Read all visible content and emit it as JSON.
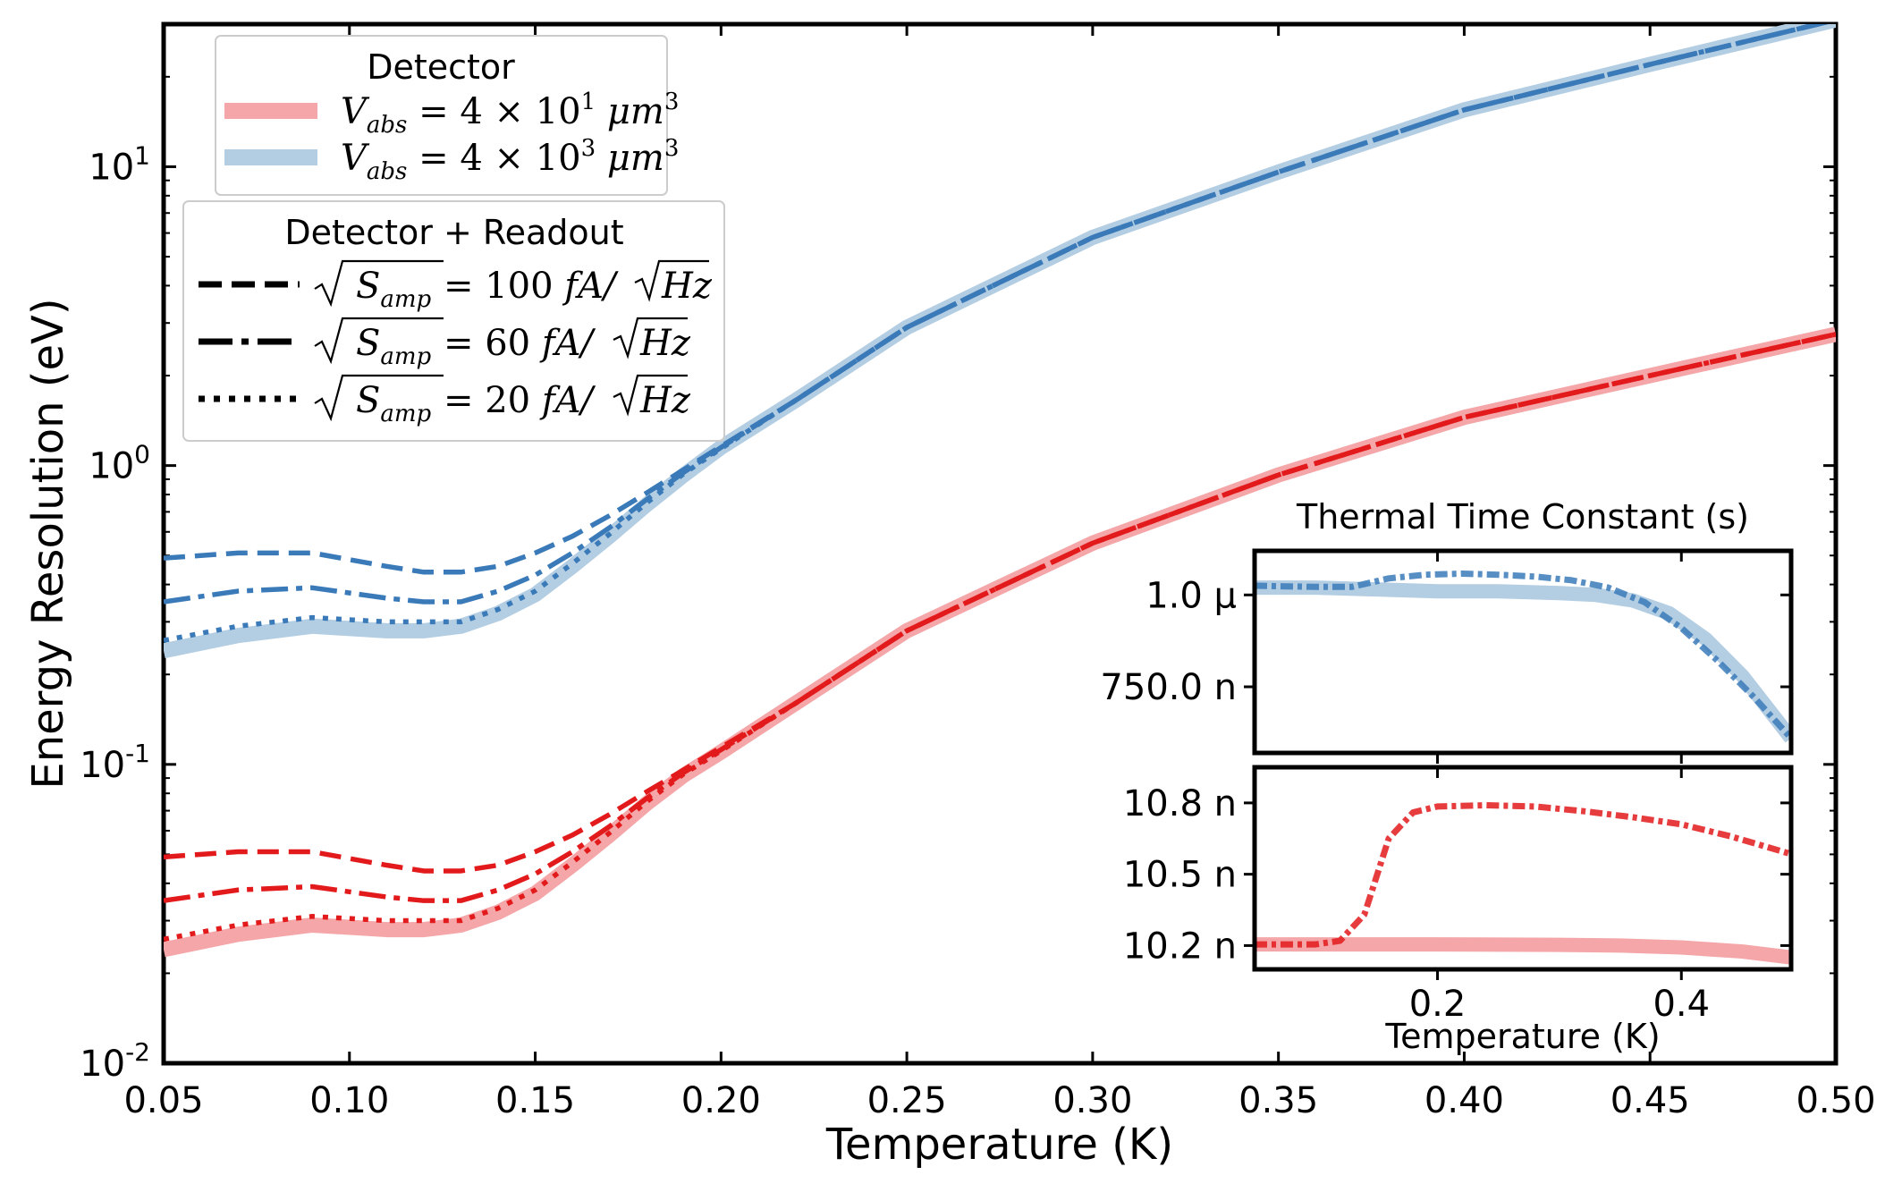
{
  "colors": {
    "red": "#e31a1c",
    "red_light": "#f4a6a8",
    "blue": "#3a7ab8",
    "blue_light": "#b3cde3",
    "axis": "#000000"
  },
  "chart_data": [
    {
      "id": "main",
      "type": "line",
      "xlabel": "Temperature (K)",
      "ylabel": "Energy Resolution (eV)",
      "xlim": [
        0.05,
        0.5
      ],
      "ylim": [
        0.01,
        30
      ],
      "yscale": "log",
      "xticks": [
        0.05,
        0.1,
        0.15,
        0.2,
        0.25,
        0.3,
        0.35,
        0.4,
        0.45,
        0.5
      ],
      "xtick_labels": [
        "0.05",
        "0.10",
        "0.15",
        "0.20",
        "0.25",
        "0.30",
        "0.35",
        "0.40",
        "0.45",
        "0.50"
      ],
      "yticks": [
        0.01,
        0.1,
        1,
        10
      ],
      "ytick_labels": [
        {
          "base": "10",
          "exp": "-2"
        },
        {
          "base": "10",
          "exp": "-1"
        },
        {
          "base": "10",
          "exp": "0"
        },
        {
          "base": "10",
          "exp": "1"
        }
      ],
      "x": [
        0.05,
        0.07,
        0.09,
        0.11,
        0.12,
        0.13,
        0.14,
        0.15,
        0.16,
        0.17,
        0.18,
        0.19,
        0.2,
        0.22,
        0.25,
        0.3,
        0.35,
        0.4,
        0.45,
        0.5
      ],
      "series": [
        {
          "name": "Detector V_abs = 4x10^1",
          "group": "small",
          "style": "band",
          "values": [
            0.024,
            0.027,
            0.029,
            0.028,
            0.028,
            0.029,
            0.032,
            0.037,
            0.046,
            0.058,
            0.074,
            0.092,
            0.11,
            0.16,
            0.28,
            0.55,
            0.93,
            1.45,
            2.0,
            2.75
          ]
        },
        {
          "name": "100 fA/sqrtHz (small)",
          "group": "small",
          "style": "dash",
          "values": [
            0.049,
            0.051,
            0.051,
            0.046,
            0.044,
            0.044,
            0.046,
            0.051,
            0.058,
            0.068,
            0.081,
            0.096,
            0.114,
            0.16,
            0.28,
            0.55,
            0.93,
            1.45,
            2.0,
            2.75
          ]
        },
        {
          "name": "60 fA/sqrtHz (small)",
          "group": "small",
          "style": "dashdot",
          "values": [
            0.035,
            0.038,
            0.039,
            0.036,
            0.035,
            0.035,
            0.038,
            0.043,
            0.051,
            0.062,
            0.077,
            0.094,
            0.112,
            0.16,
            0.28,
            0.55,
            0.93,
            1.45,
            2.0,
            2.75
          ]
        },
        {
          "name": "20 fA/sqrtHz (small)",
          "group": "small",
          "style": "dot",
          "values": [
            0.026,
            0.029,
            0.031,
            0.03,
            0.03,
            0.03,
            0.033,
            0.038,
            0.047,
            0.059,
            0.075,
            0.093,
            0.111,
            0.16,
            0.28,
            0.55,
            0.93,
            1.45,
            2.0,
            2.75
          ]
        },
        {
          "name": "Detector V_abs = 4x10^3",
          "group": "large",
          "style": "band",
          "values": [
            0.24,
            0.27,
            0.29,
            0.28,
            0.28,
            0.29,
            0.32,
            0.37,
            0.46,
            0.58,
            0.74,
            0.93,
            1.15,
            1.65,
            2.9,
            5.8,
            9.6,
            15.5,
            22.0,
            31.0
          ]
        },
        {
          "name": "100 fA/sqrtHz (large)",
          "group": "large",
          "style": "dash",
          "values": [
            0.49,
            0.51,
            0.51,
            0.46,
            0.44,
            0.44,
            0.46,
            0.51,
            0.58,
            0.68,
            0.81,
            0.97,
            1.16,
            1.65,
            2.9,
            5.8,
            9.6,
            15.5,
            22.0,
            31.0
          ]
        },
        {
          "name": "60 fA/sqrtHz (large)",
          "group": "large",
          "style": "dashdot",
          "values": [
            0.35,
            0.38,
            0.39,
            0.36,
            0.35,
            0.35,
            0.38,
            0.43,
            0.51,
            0.62,
            0.77,
            0.95,
            1.15,
            1.65,
            2.9,
            5.8,
            9.6,
            15.5,
            22.0,
            31.0
          ]
        },
        {
          "name": "20 fA/sqrtHz (large)",
          "group": "large",
          "style": "dot",
          "values": [
            0.26,
            0.29,
            0.31,
            0.3,
            0.3,
            0.3,
            0.33,
            0.38,
            0.47,
            0.59,
            0.75,
            0.94,
            1.14,
            1.65,
            2.9,
            5.8,
            9.6,
            15.5,
            22.0,
            31.0
          ]
        }
      ]
    },
    {
      "id": "inset_top",
      "type": "line",
      "title": "Thermal Time Constant (s)",
      "xlim": [
        0.05,
        0.49
      ],
      "ylim": [
        5.7e-07,
        1.12e-06
      ],
      "yticks": [
        7.5e-07,
        1e-06
      ],
      "ytick_labels": [
        "750.0 n",
        "1.0 µ"
      ],
      "xticks": [
        0.2,
        0.4
      ],
      "series": [
        {
          "name": "Detector (large)",
          "style": "band",
          "x": [
            0.05,
            0.1,
            0.15,
            0.2,
            0.25,
            0.3,
            0.33,
            0.36,
            0.39,
            0.42,
            0.45,
            0.49
          ],
          "values": [
            1.02e-06,
            1.02e-06,
            1.015e-06,
            1.01e-06,
            1.01e-06,
            1.005e-06,
            1e-06,
            9.85e-07,
            9.5e-07,
            8.8e-07,
            7.8e-07,
            6.1e-07
          ]
        },
        {
          "name": "Detector + Readout (large)",
          "style": "dashdot",
          "x": [
            0.05,
            0.1,
            0.13,
            0.16,
            0.19,
            0.22,
            0.25,
            0.28,
            0.31,
            0.34,
            0.37,
            0.4,
            0.43,
            0.46,
            0.49
          ],
          "values": [
            1.025e-06,
            1.022e-06,
            1.022e-06,
            1.045e-06,
            1.055e-06,
            1.058e-06,
            1.055e-06,
            1.05e-06,
            1.04e-06,
            1.02e-06,
            9.8e-07,
            9.1e-07,
            8.2e-07,
            7.2e-07,
            6.1e-07
          ]
        }
      ]
    },
    {
      "id": "inset_bottom",
      "type": "line",
      "xlabel": "Temperature (K)",
      "xlim": [
        0.05,
        0.49
      ],
      "ylim": [
        1.01e-08,
        1.095e-08
      ],
      "xticks": [
        0.2,
        0.4
      ],
      "xtick_labels": [
        "0.2",
        "0.4"
      ],
      "yticks": [
        1.02e-08,
        1.05e-08,
        1.08e-08
      ],
      "ytick_labels": [
        "10.2 n",
        "10.5 n",
        "10.8 n"
      ],
      "series": [
        {
          "name": "Detector (small)",
          "style": "band",
          "x": [
            0.05,
            0.1,
            0.2,
            0.3,
            0.35,
            0.4,
            0.45,
            0.49
          ],
          "values": [
            1.0205e-08,
            1.0205e-08,
            1.0205e-08,
            1.0203e-08,
            1.02e-08,
            1.0192e-08,
            1.0175e-08,
            1.015e-08
          ]
        },
        {
          "name": "Detector + Readout (small)",
          "style": "dashdot",
          "x": [
            0.05,
            0.1,
            0.12,
            0.14,
            0.16,
            0.18,
            0.2,
            0.24,
            0.28,
            0.32,
            0.36,
            0.4,
            0.44,
            0.49
          ],
          "values": [
            1.0205e-08,
            1.0205e-08,
            1.022e-08,
            1.033e-08,
            1.065e-08,
            1.076e-08,
            1.0785e-08,
            1.079e-08,
            1.0785e-08,
            1.0765e-08,
            1.074e-08,
            1.071e-08,
            1.066e-08,
            1.0585e-08
          ]
        }
      ]
    }
  ],
  "legend_detector": {
    "title": "Detector",
    "entries": [
      {
        "prefix": "V",
        "sub": "abs",
        "mid": " = 4 × 10",
        "sup": "1",
        "unit": " μm",
        "unit_sup": "3"
      },
      {
        "prefix": "V",
        "sub": "abs",
        "mid": " = 4 × 10",
        "sup": "3",
        "unit": " μm",
        "unit_sup": "3"
      }
    ]
  },
  "legend_readout": {
    "title": "Detector + Readout",
    "entries": [
      {
        "style": "dash",
        "radicand": "S",
        "sub": "amp",
        "value": " = 100 ",
        "unit": "fA/",
        "unit_rad": "Hz"
      },
      {
        "style": "dashdot",
        "radicand": "S",
        "sub": "amp",
        "value": " = 60 ",
        "unit": "fA/",
        "unit_rad": "Hz"
      },
      {
        "style": "dot",
        "radicand": "S",
        "sub": "amp",
        "value": " = 20 ",
        "unit": "fA/",
        "unit_rad": "Hz"
      }
    ]
  }
}
